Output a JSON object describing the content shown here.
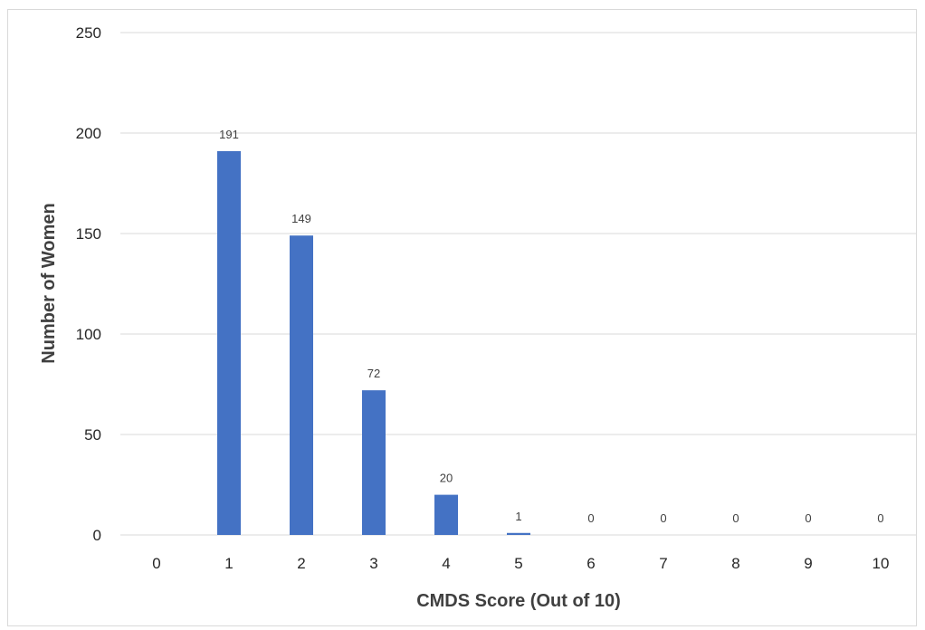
{
  "chart_data": {
    "type": "bar",
    "title": "",
    "xlabel": "CMDS Score (Out of 10)",
    "ylabel": "Number of Women",
    "categories": [
      "0",
      "1",
      "2",
      "3",
      "4",
      "5",
      "6",
      "7",
      "8",
      "9",
      "10"
    ],
    "values": [
      null,
      191,
      149,
      72,
      20,
      1,
      0,
      0,
      0,
      0,
      0
    ],
    "data_labels": [
      "",
      "191",
      "149",
      "72",
      "20",
      "1",
      "0",
      "0",
      "0",
      "0",
      "0"
    ],
    "ylim": [
      0,
      250
    ],
    "yticks": [
      "0",
      "50",
      "100",
      "150",
      "200",
      "250"
    ],
    "grid": true,
    "legend": "none",
    "bar_color": "#4472c4",
    "grid_color": "#d9d9d9"
  }
}
